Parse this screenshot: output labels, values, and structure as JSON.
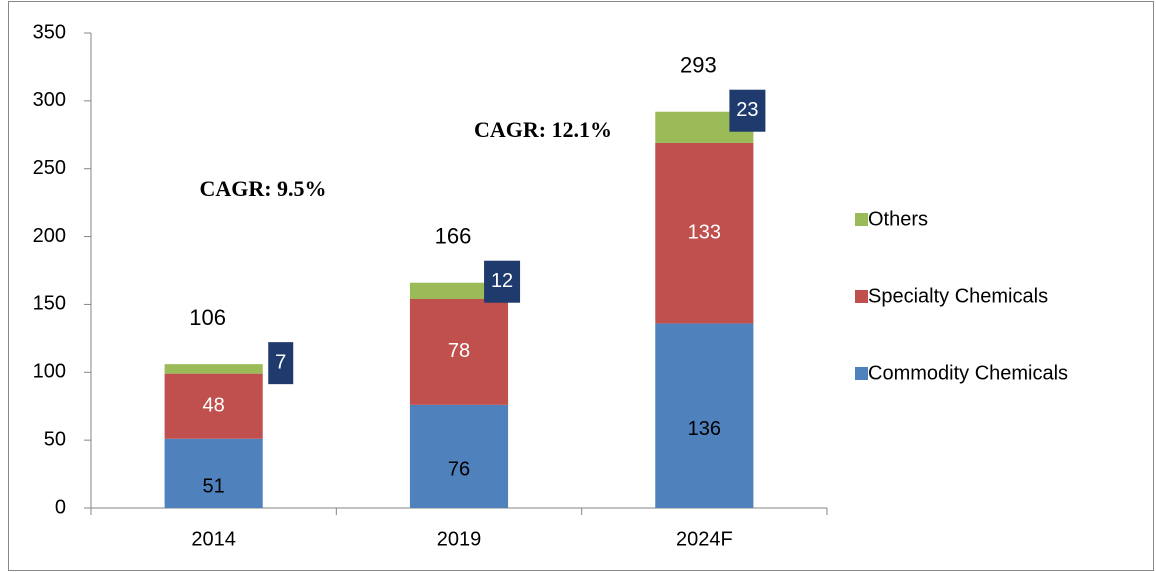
{
  "chart_data": {
    "type": "stacked_bar",
    "categories": [
      "2014",
      "2019",
      "2024F"
    ],
    "series": [
      {
        "name": "Commodity Chemicals",
        "color": "#4f81bd",
        "values": [
          51,
          76,
          136
        ]
      },
      {
        "name": "Specialty Chemicals",
        "color": "#c0504d",
        "values": [
          48,
          78,
          133
        ]
      },
      {
        "name": "Others",
        "color": "#9bbb59",
        "values": [
          7,
          12,
          23
        ]
      }
    ],
    "totals": [
      106,
      166,
      293
    ],
    "annotations": [
      "CAGR: 9.5%",
      "CAGR: 12.1%"
    ],
    "ylim": [
      0,
      350
    ],
    "yticks": [
      0,
      50,
      100,
      150,
      200,
      250,
      300,
      350
    ],
    "legend": "right"
  }
}
